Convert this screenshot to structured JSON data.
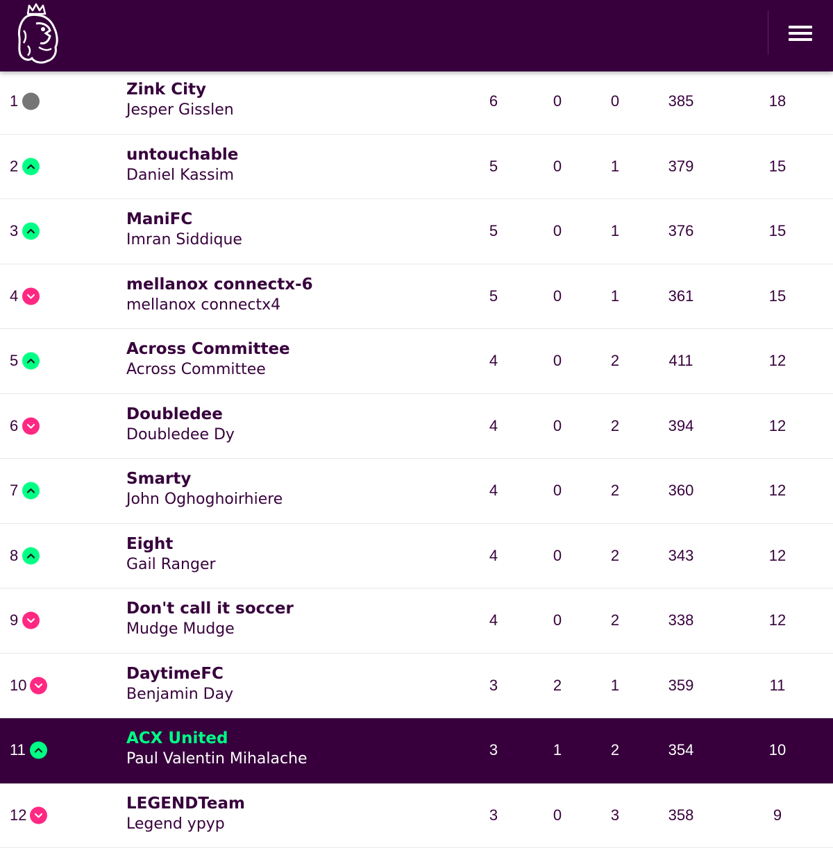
{
  "header": {
    "logo_icon": "premier-league-lion-icon",
    "menu_icon": "hamburger-menu-icon",
    "background_color": "#37003c"
  },
  "colors": {
    "up": "#00ff85",
    "down": "#ff2882",
    "same": "#767676",
    "highlight": "#37003c"
  },
  "rows": [
    {
      "rank": "1",
      "movement": "same",
      "team": "Zink City",
      "manager": "Jesper Gisslen",
      "w": "6",
      "d": "0",
      "l": "0",
      "pts": "385",
      "total": "18",
      "highlight": false
    },
    {
      "rank": "2",
      "movement": "up",
      "team": "untouchable",
      "manager": "Daniel Kassim",
      "w": "5",
      "d": "0",
      "l": "1",
      "pts": "379",
      "total": "15",
      "highlight": false
    },
    {
      "rank": "3",
      "movement": "up",
      "team": "ManiFC",
      "manager": "Imran Siddique",
      "w": "5",
      "d": "0",
      "l": "1",
      "pts": "376",
      "total": "15",
      "highlight": false
    },
    {
      "rank": "4",
      "movement": "down",
      "team": "mellanox connectx-6",
      "manager": "mellanox connectx4",
      "w": "5",
      "d": "0",
      "l": "1",
      "pts": "361",
      "total": "15",
      "highlight": false
    },
    {
      "rank": "5",
      "movement": "up",
      "team": "Across Committee",
      "manager": "Across Committee",
      "w": "4",
      "d": "0",
      "l": "2",
      "pts": "411",
      "total": "12",
      "highlight": false
    },
    {
      "rank": "6",
      "movement": "down",
      "team": "Doubledee",
      "manager": "Doubledee Dy",
      "w": "4",
      "d": "0",
      "l": "2",
      "pts": "394",
      "total": "12",
      "highlight": false
    },
    {
      "rank": "7",
      "movement": "up",
      "team": "Smarty",
      "manager": "John Oghoghoirhiere",
      "w": "4",
      "d": "0",
      "l": "2",
      "pts": "360",
      "total": "12",
      "highlight": false
    },
    {
      "rank": "8",
      "movement": "up",
      "team": "Eight",
      "manager": "Gail Ranger",
      "w": "4",
      "d": "0",
      "l": "2",
      "pts": "343",
      "total": "12",
      "highlight": false
    },
    {
      "rank": "9",
      "movement": "down",
      "team": "Don't call it soccer",
      "manager": "Mudge Mudge",
      "w": "4",
      "d": "0",
      "l": "2",
      "pts": "338",
      "total": "12",
      "highlight": false
    },
    {
      "rank": "10",
      "movement": "down",
      "team": "DaytimeFC",
      "manager": "Benjamin Day",
      "w": "3",
      "d": "2",
      "l": "1",
      "pts": "359",
      "total": "11",
      "highlight": false
    },
    {
      "rank": "11",
      "movement": "up",
      "team": "ACX United",
      "manager": "Paul Valentin Mihalache",
      "w": "3",
      "d": "1",
      "l": "2",
      "pts": "354",
      "total": "10",
      "highlight": true
    },
    {
      "rank": "12",
      "movement": "down",
      "team": "LEGENDTeam",
      "manager": "Legend ypyp",
      "w": "3",
      "d": "0",
      "l": "3",
      "pts": "358",
      "total": "9",
      "highlight": false
    }
  ]
}
